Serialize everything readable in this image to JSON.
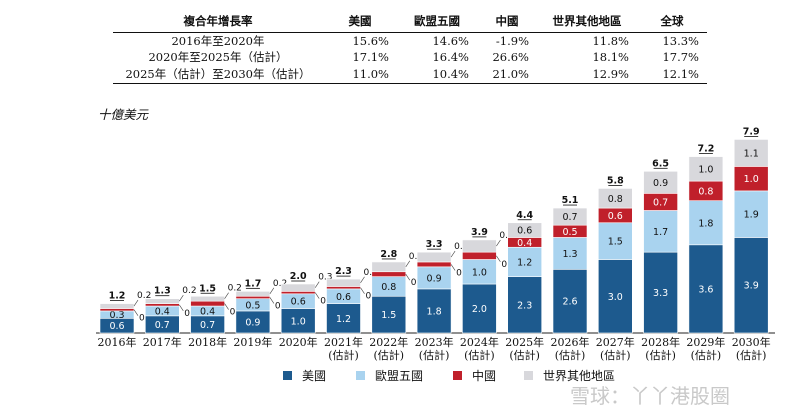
{
  "cagr_table": {
    "headers": [
      "複合年增長率",
      "美國",
      "歐盟五國",
      "中國",
      "世界其他地區",
      "全球"
    ],
    "rows": [
      {
        "label": "2016年至2020年",
        "values": [
          "15.6%",
          "14.6%",
          "-1.9%",
          "11.8%",
          "13.3%"
        ]
      },
      {
        "label": "2020年至2025年（估計）",
        "values": [
          "17.1%",
          "16.4%",
          "26.6%",
          "18.1%",
          "17.7%"
        ]
      },
      {
        "label": "2025年（估計）至2030年（估計）",
        "values": [
          "11.0%",
          "10.4%",
          "21.0%",
          "12.9%",
          "12.1%"
        ]
      }
    ]
  },
  "chart_data": {
    "type": "bar",
    "stacked": true,
    "unit_label": "十億美元",
    "categories": [
      [
        "2016年"
      ],
      [
        "2017年"
      ],
      [
        "2018年"
      ],
      [
        "2019年"
      ],
      [
        "2020年"
      ],
      [
        "2021年",
        "(估計)"
      ],
      [
        "2022年",
        "(估計)"
      ],
      [
        "2023年",
        "(估計)"
      ],
      [
        "2024年",
        "(估計)"
      ],
      [
        "2025年",
        "(估計)"
      ],
      [
        "2026年",
        "(估計)"
      ],
      [
        "2027年",
        "(估計)"
      ],
      [
        "2028年",
        "(估計)"
      ],
      [
        "2029年",
        "(估計)"
      ],
      [
        "2030年",
        "(估計)"
      ]
    ],
    "totals": [
      "1.2",
      "1.3",
      "1.5",
      "1.7",
      "2.0",
      "2.3",
      "2.8",
      "3.3",
      "3.9",
      "4.4",
      "5.1",
      "5.8",
      "6.5",
      "7.2",
      "7.9"
    ],
    "series": [
      {
        "name": "美國",
        "color": "#1d5a8e",
        "values": [
          0.6,
          0.7,
          0.7,
          0.9,
          1.0,
          1.2,
          1.5,
          1.8,
          2.0,
          2.3,
          2.6,
          3.0,
          3.3,
          3.6,
          3.9
        ]
      },
      {
        "name": "歐盟五國",
        "color": "#a9d3ef",
        "values": [
          0.3,
          0.4,
          0.4,
          0.5,
          0.6,
          0.6,
          0.8,
          0.9,
          1.0,
          1.2,
          1.3,
          1.5,
          1.7,
          1.8,
          1.9
        ]
      },
      {
        "name": "中國",
        "color": "#c0202b",
        "values": [
          0.1,
          0.1,
          0.2,
          0.1,
          0.1,
          0.1,
          0.2,
          0.2,
          0.3,
          0.4,
          0.5,
          0.6,
          0.7,
          0.8,
          1.0
        ]
      },
      {
        "name": "世界其他地區",
        "color": "#d8d8dc",
        "values": [
          0.2,
          0.2,
          0.2,
          0.2,
          0.3,
          0.3,
          0.4,
          0.4,
          0.5,
          0.6,
          0.7,
          0.8,
          0.9,
          1.0,
          1.1
        ]
      }
    ],
    "outside_label_bars": 9,
    "ylim": [
      0,
      8.2
    ]
  },
  "watermark": "雪球：丫丫港股圈"
}
